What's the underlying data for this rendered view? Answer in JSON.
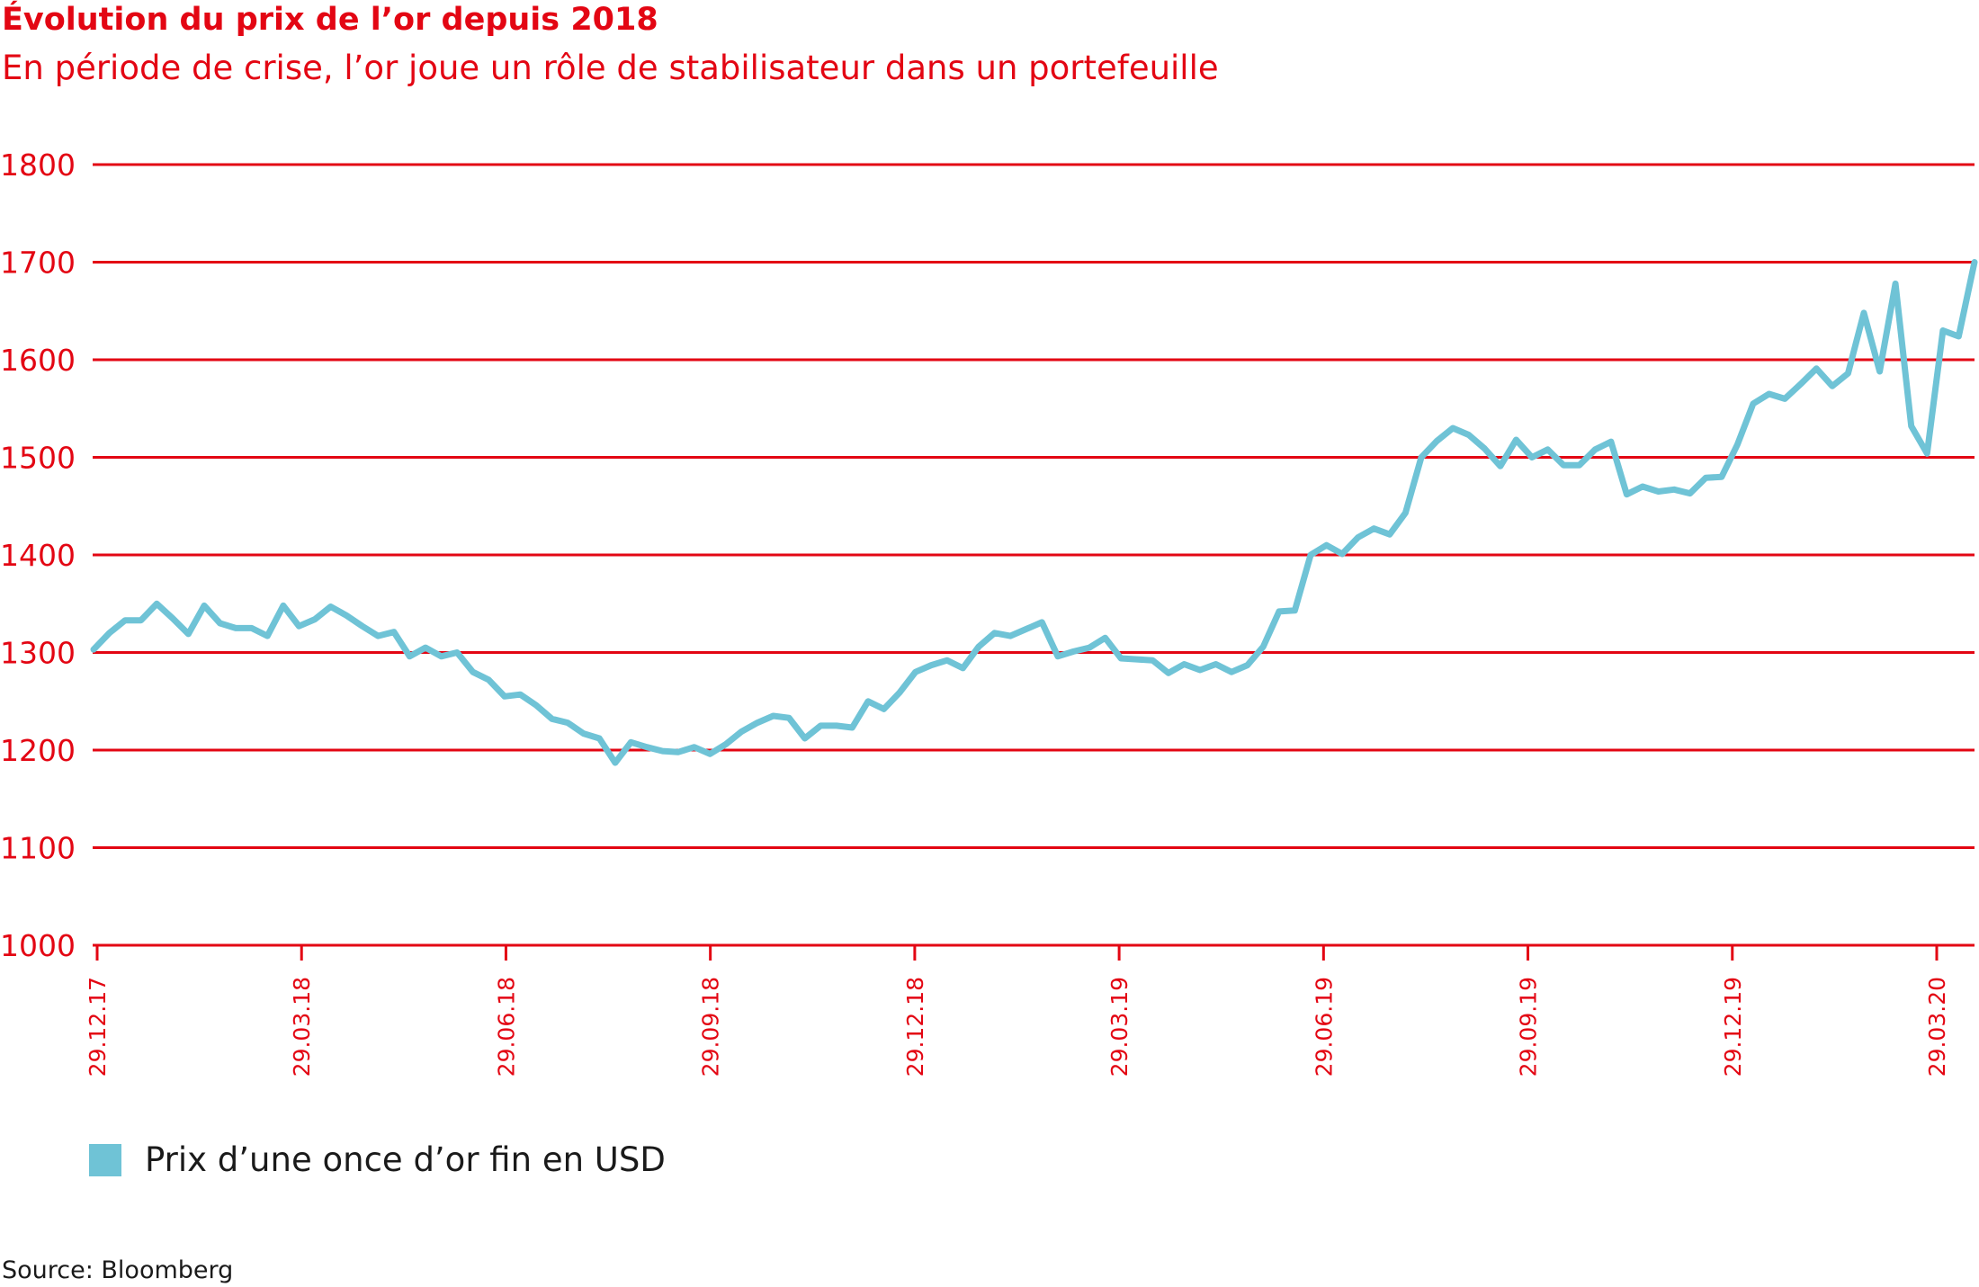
{
  "header": {
    "title": "Évolution du prix de l’or depuis 2018",
    "subtitle": "En période de crise, l’or joue un rôle de stabilisateur dans un portefeuille"
  },
  "legend": {
    "label": "Prix d’une once d’or fin en USD"
  },
  "footer": {
    "source": "Source: Bloomberg"
  },
  "colors": {
    "accent": "#e30613",
    "series": "#6fc3d6",
    "text": "#1a1a1a"
  },
  "chart_data": {
    "type": "line",
    "title": "Évolution du prix de l’or depuis 2018",
    "subtitle": "En période de crise, l’or joue un rôle de stabilisateur dans un portefeuille",
    "xlabel": "",
    "ylabel": "",
    "ylim": [
      1000,
      1800
    ],
    "yticks": [
      1000,
      1100,
      1200,
      1300,
      1400,
      1500,
      1600,
      1700,
      1800
    ],
    "xticks": [
      "29.12.17",
      "29.03.18",
      "29.06.18",
      "29.09.18",
      "29.12.18",
      "29.03.19",
      "29.06.19",
      "29.09.19",
      "29.12.19",
      "29.03.20"
    ],
    "grid": true,
    "legend_position": "bottom-left",
    "series": [
      {
        "name": "Prix d’une once d’or fin en USD",
        "color": "#6fc3d6",
        "values": [
          1303,
          1320,
          1333,
          1333,
          1350,
          1335,
          1319,
          1348,
          1330,
          1325,
          1325,
          1317,
          1348,
          1327,
          1334,
          1347,
          1338,
          1327,
          1317,
          1321,
          1296,
          1305,
          1296,
          1300,
          1280,
          1272,
          1255,
          1257,
          1246,
          1232,
          1228,
          1217,
          1212,
          1187,
          1208,
          1203,
          1199,
          1198,
          1203,
          1196,
          1206,
          1219,
          1228,
          1235,
          1233,
          1212,
          1225,
          1225,
          1223,
          1250,
          1242,
          1259,
          1280,
          1287,
          1292,
          1284,
          1306,
          1320,
          1317,
          1324,
          1331,
          1296,
          1301,
          1305,
          1315,
          1294,
          1293,
          1292,
          1279,
          1288,
          1282,
          1288,
          1280,
          1287,
          1306,
          1342,
          1343,
          1400,
          1410,
          1401,
          1418,
          1427,
          1421,
          1443,
          1500,
          1517,
          1530,
          1523,
          1509,
          1491,
          1518,
          1500,
          1508,
          1492,
          1492,
          1508,
          1516,
          1462,
          1470,
          1465,
          1467,
          1463,
          1479,
          1480,
          1513,
          1555,
          1565,
          1560,
          1575,
          1591,
          1573,
          1586,
          1648,
          1588,
          1678,
          1532,
          1504,
          1630,
          1624,
          1700
        ]
      }
    ]
  }
}
